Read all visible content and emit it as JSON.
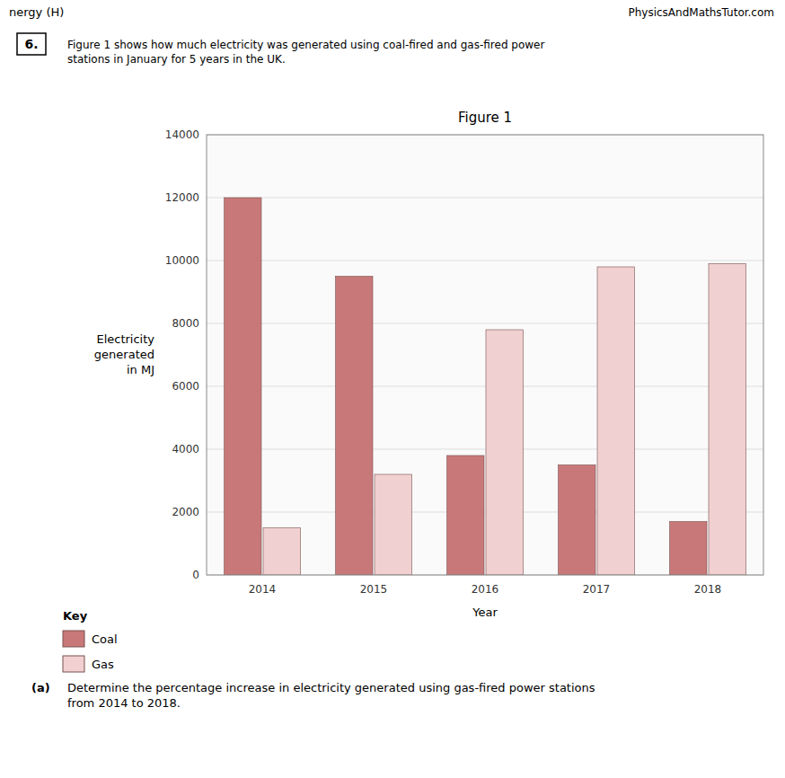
{
  "chart_data": {
    "type": "bar",
    "title": "Figure 1",
    "x_label": "Year",
    "y_label": "Electricity\ngenerated\nin MJ",
    "categories": [
      "2014",
      "2015",
      "2016",
      "2017",
      "2018"
    ],
    "series": [
      {
        "name": "Coal",
        "color": "#c87878",
        "values": [
          12000,
          9500,
          3800,
          3500,
          1700
        ]
      },
      {
        "name": "Gas",
        "color": "#f0d0d0",
        "values": [
          1500,
          3200,
          7800,
          9800,
          9900
        ]
      }
    ],
    "ylim": [
      0,
      14000
    ],
    "yticks": [
      0,
      2000,
      4000,
      6000,
      8000,
      10000,
      12000,
      14000
    ],
    "grid": true,
    "legend": "lower left",
    "annotations": [
      "nergy (H)",
      "PhysicsAndMathsTutor.com",
      "6.",
      "Figure 1 shows how much electricity was generated using coal-fired and gas-fired power\nstations in January for 5 years in the UK.",
      "Key",
      "(a)",
      "Determine the percentage increase in electricity generated using gas-fired power stations\nfrom 2014 to 2018."
    ]
  }
}
